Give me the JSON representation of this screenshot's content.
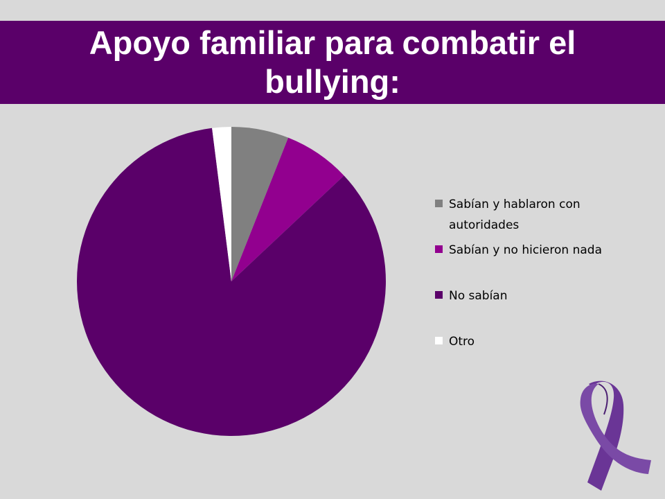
{
  "title": "Apoyo familiar para combatir el bullying:",
  "colors": {
    "background": "#d9d9d9",
    "title_band": "#5a0069",
    "title_text": "#ffffff"
  },
  "chart_data": {
    "type": "pie",
    "categories": [
      "Sabían y hablaron con autoridades",
      "Sabían y no hicieron nada",
      "No sabían",
      "Otro"
    ],
    "values": [
      6,
      7,
      85,
      2
    ],
    "colors": [
      "#808080",
      "#92008f",
      "#5a0069",
      "#ffffff"
    ],
    "legend_position": "right"
  }
}
